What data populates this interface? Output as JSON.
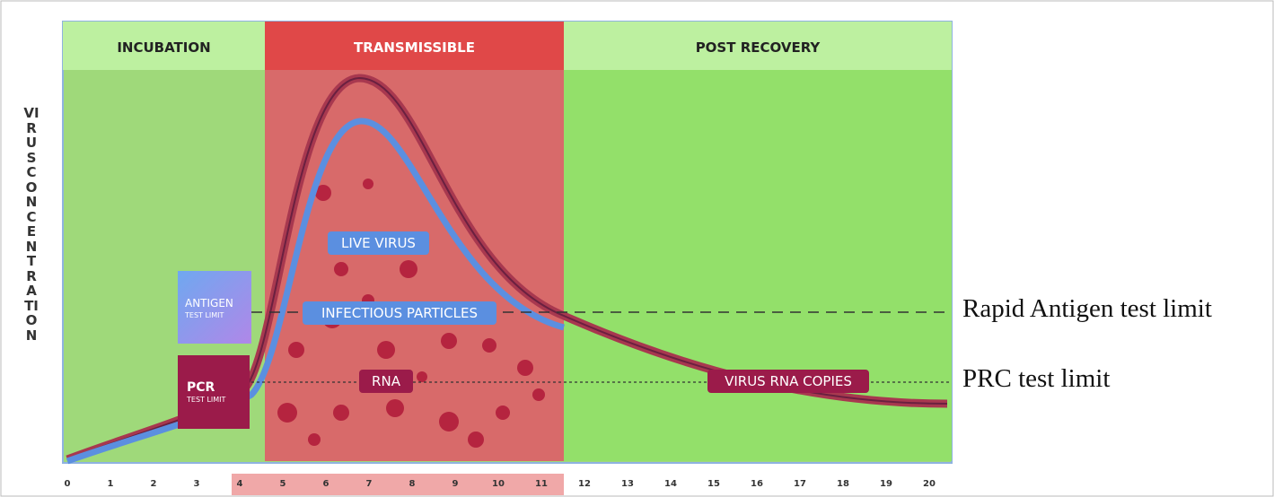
{
  "phases": [
    "INCUBATION",
    "TRANSMISSIBLE",
    "POST RECOVERY"
  ],
  "y_axis_label": "VIRUS CONCENTRATION",
  "antigen_box": {
    "title": "ANTIGEN",
    "subtitle": "TEST LIMIT"
  },
  "pcr_box": {
    "title": "PCR",
    "subtitle": "TEST LIMIT"
  },
  "curve_labels": [
    "LIVE VIRUS",
    "INFECTIOUS PARTICLES",
    "RNA",
    "VIRUS RNA COPIES"
  ],
  "x_axis": {
    "ticks": [
      "0",
      "1",
      "2",
      "3",
      "4",
      "5",
      "6",
      "7",
      "8",
      "9",
      "10",
      "11",
      "12",
      "13",
      "14",
      "15",
      "16",
      "17",
      "18",
      "19",
      "20"
    ]
  },
  "limits": [
    "Rapid Antigen test limit",
    "PRC test limit"
  ]
}
